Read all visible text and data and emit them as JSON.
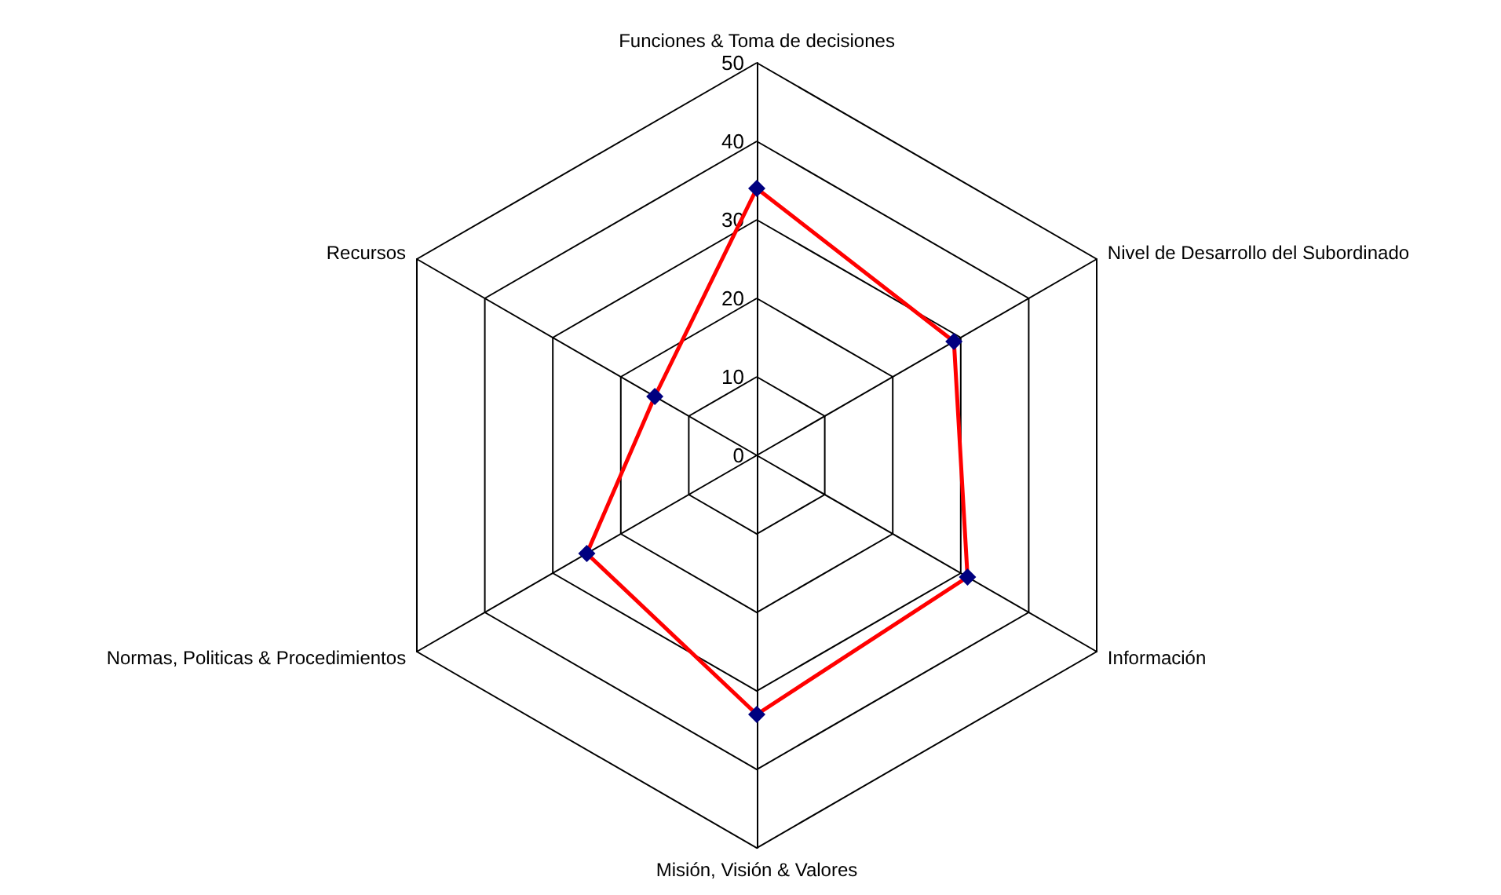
{
  "chart_data": {
    "type": "radar",
    "categories": [
      "Funciones & Toma de decisiones",
      "Nivel de Desarrollo del Subordinado",
      "Información",
      "Misión, Visión & Valores",
      "Normas, Politicas & Procedimientos",
      "Recursos"
    ],
    "series": [
      {
        "color": "#ff0000",
        "values": [
          34,
          29,
          31,
          33,
          25,
          15
        ]
      }
    ],
    "marker": "diamond",
    "ylim": [
      0,
      50
    ],
    "yticks": [
      0,
      10,
      20,
      30,
      40,
      50
    ],
    "grid": true
  }
}
